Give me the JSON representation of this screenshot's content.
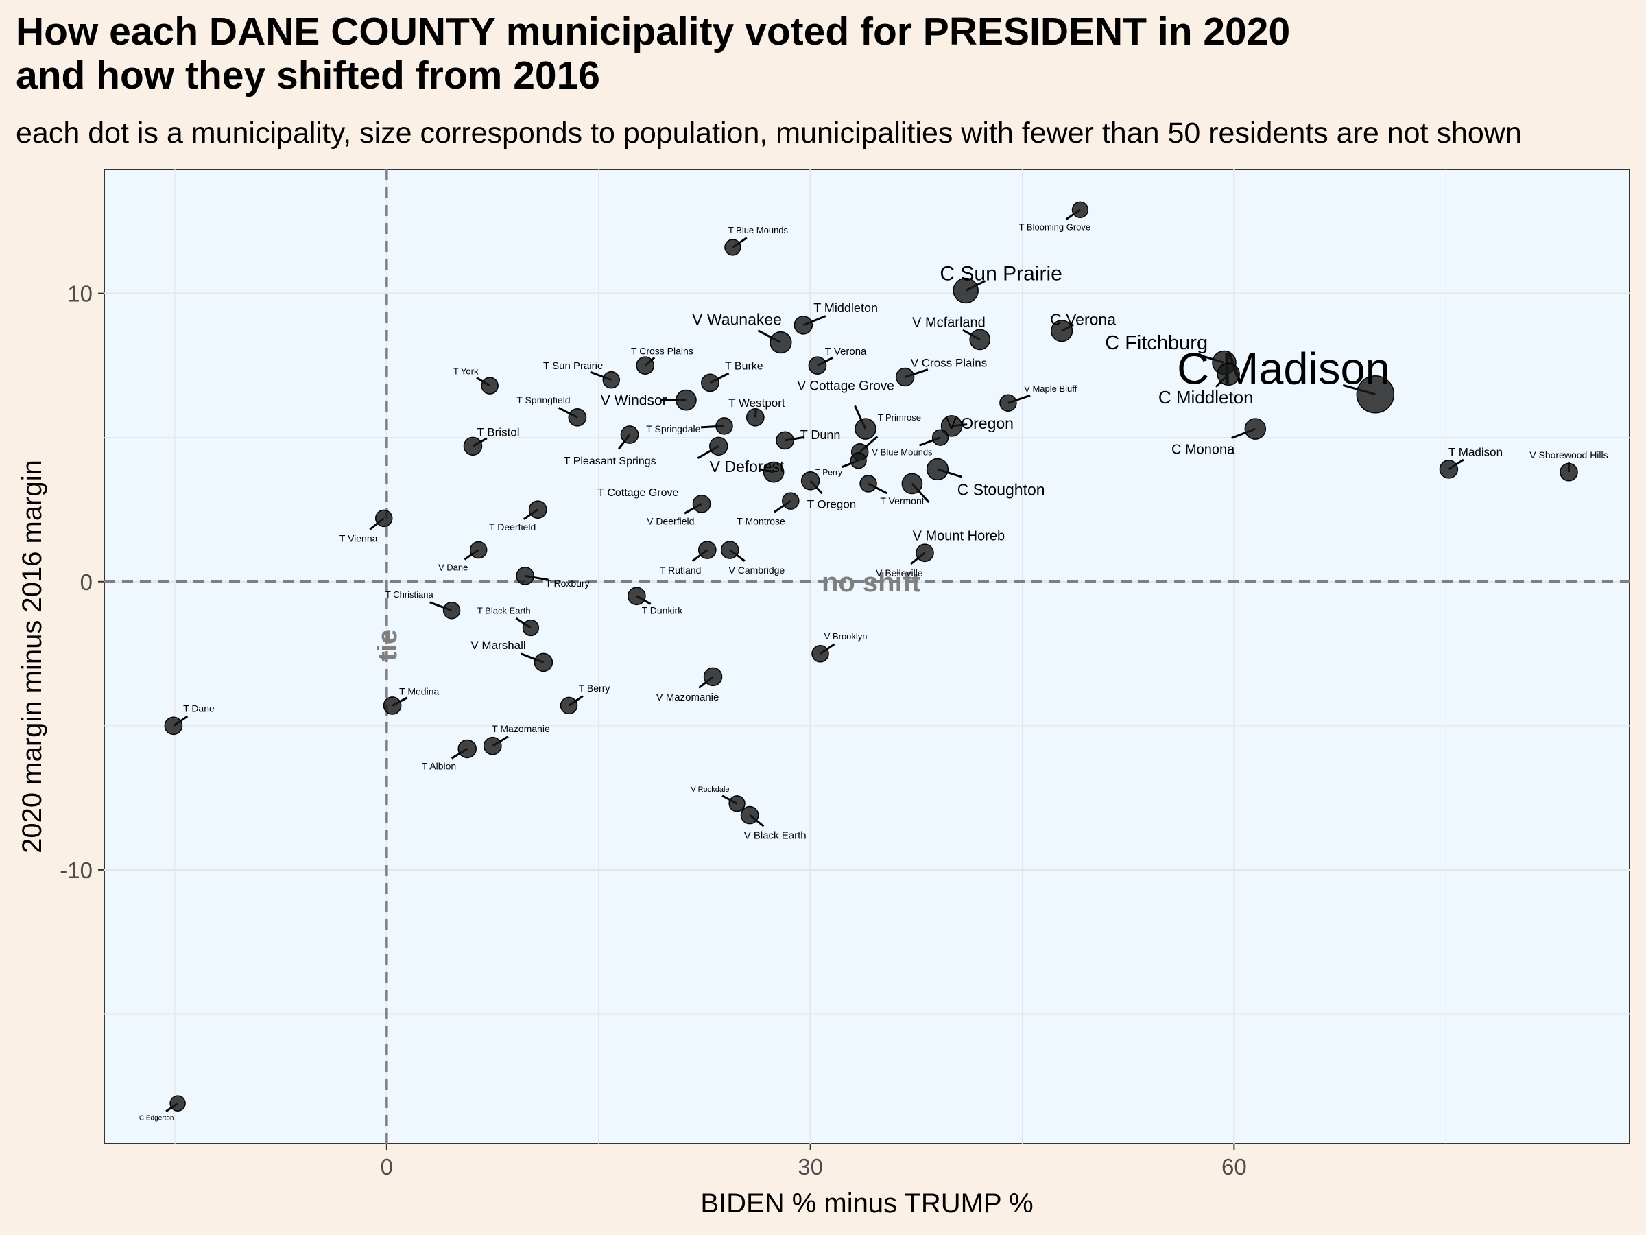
{
  "title_line1": "How each DANE COUNTY municipality voted for PRESIDENT in 2020",
  "title_line2": "and how they shifted from 2016",
  "subtitle": "each dot is a municipality, size corresponds to population, municipalities with fewer than 50 residents are not shown",
  "colors": {
    "background": "#faf0e6",
    "panel": "#f0f8ff",
    "point": "#1a1a1a",
    "ref_line": "#7f7f7f",
    "grid": "#e6e6e6"
  },
  "chart_data": {
    "type": "scatter",
    "xlabel": "BIDEN % minus TRUMP %",
    "ylabel": "2020 margin minus 2016 margin",
    "xlim": [
      -20,
      88
    ],
    "ylim": [
      -19.5,
      14.3
    ],
    "x_ticks": [
      0,
      30,
      60
    ],
    "x_tick_labels": [
      "0",
      "30",
      "60"
    ],
    "y_ticks": [
      -10,
      0,
      10
    ],
    "y_tick_labels": [
      "-10",
      "0",
      "10"
    ],
    "grid": true,
    "reference_lines": [
      {
        "axis": "x",
        "value": 0,
        "label": "tie"
      },
      {
        "axis": "y",
        "value": 0,
        "label": "no shift"
      }
    ],
    "points": [
      {
        "name": "C Madison",
        "x": 70,
        "y": 6.5,
        "size": 1.0,
        "lx": 63.5,
        "ly": 7.4,
        "fs": 65
      },
      {
        "name": "C Sun Prairie",
        "x": 41,
        "y": 10.1,
        "size": 0.55,
        "lx": 43.5,
        "ly": 10.7,
        "fs": 30
      },
      {
        "name": "C Fitchburg",
        "x": 59.3,
        "y": 7.6,
        "size": 0.5,
        "lx": 54.5,
        "ly": 8.3,
        "fs": 29
      },
      {
        "name": "C Middleton",
        "x": 59.6,
        "y": 7.2,
        "size": 0.45,
        "lx": 58,
        "ly": 6.4,
        "fs": 26
      },
      {
        "name": "C Verona",
        "x": 47.8,
        "y": 8.7,
        "size": 0.42,
        "lx": 49.3,
        "ly": 9.1,
        "fs": 23
      },
      {
        "name": "C Monona",
        "x": 61.5,
        "y": 5.3,
        "size": 0.4,
        "lx": 57.8,
        "ly": 4.6,
        "fs": 20
      },
      {
        "name": "C Stoughton",
        "x": 39,
        "y": 3.9,
        "size": 0.42,
        "lx": 43.5,
        "ly": 3.2,
        "fs": 23
      },
      {
        "name": "V Waunakee",
        "x": 27.9,
        "y": 8.3,
        "size": 0.42,
        "lx": 24.8,
        "ly": 9.1,
        "fs": 23
      },
      {
        "name": "V Mcfarland",
        "x": 42,
        "y": 8.4,
        "size": 0.38,
        "lx": 39.8,
        "ly": 9.0,
        "fs": 20
      },
      {
        "name": "V Cottage Grove",
        "x": 33.9,
        "y": 5.3,
        "size": 0.4,
        "lx": 32.5,
        "ly": 6.8,
        "fs": 19
      },
      {
        "name": "V Oregon",
        "x": 40,
        "y": 5.4,
        "size": 0.4,
        "lx": 42,
        "ly": 5.5,
        "fs": 23
      },
      {
        "name": "V Windsor",
        "x": 21.2,
        "y": 6.3,
        "size": 0.38,
        "lx": 17.5,
        "ly": 6.3,
        "fs": 21
      },
      {
        "name": "V Deforest",
        "x": 27.4,
        "y": 3.8,
        "size": 0.38,
        "lx": 25.5,
        "ly": 4.0,
        "fs": 23
      },
      {
        "name": "V Mount Horeb",
        "x": 37.2,
        "y": 3.4,
        "size": 0.38,
        "lx": 40.5,
        "ly": 1.6,
        "fs": 20
      },
      {
        "name": "V Cross Plains",
        "x": 36.7,
        "y": 7.1,
        "size": 0.3,
        "lx": 39.8,
        "ly": 7.6,
        "fs": 17
      },
      {
        "name": "V Maple Bluff",
        "x": 44,
        "y": 6.2,
        "size": 0.25,
        "lx": 47,
        "ly": 6.7,
        "fs": 13
      },
      {
        "name": "V Blue Mounds",
        "x": 39.2,
        "y": 5.0,
        "size": 0.22,
        "lx": 36.5,
        "ly": 4.5,
        "fs": 13
      },
      {
        "name": "V Shorewood Hills",
        "x": 83.7,
        "y": 3.8,
        "size": 0.28,
        "lx": 83.7,
        "ly": 4.4,
        "fs": 14
      },
      {
        "name": "V Belleville",
        "x": 38.1,
        "y": 1.0,
        "size": 0.28,
        "lx": 36.3,
        "ly": 0.3,
        "fs": 14
      },
      {
        "name": "V Brooklyn",
        "x": 30.7,
        "y": -2.5,
        "size": 0.25,
        "lx": 32.5,
        "ly": -1.9,
        "fs": 13
      },
      {
        "name": "V Cambridge",
        "x": 24.3,
        "y": 1.1,
        "size": 0.28,
        "lx": 26.2,
        "ly": 0.4,
        "fs": 14
      },
      {
        "name": "V Deerfield",
        "x": 22.3,
        "y": 2.7,
        "size": 0.28,
        "lx": 20.1,
        "ly": 2.1,
        "fs": 14
      },
      {
        "name": "V Dane",
        "x": 6.5,
        "y": 1.1,
        "size": 0.25,
        "lx": 4.7,
        "ly": 0.5,
        "fs": 13
      },
      {
        "name": "V Marshall",
        "x": 11.1,
        "y": -2.8,
        "size": 0.3,
        "lx": 7.9,
        "ly": -2.2,
        "fs": 17
      },
      {
        "name": "V Mazomanie",
        "x": 23.1,
        "y": -3.3,
        "size": 0.3,
        "lx": 21.3,
        "ly": -4.0,
        "fs": 15
      },
      {
        "name": "V Rockdale",
        "x": 24.8,
        "y": -7.7,
        "size": 0.22,
        "lx": 22.9,
        "ly": -7.2,
        "fs": 11
      },
      {
        "name": "V Black Earth",
        "x": 25.7,
        "y": -8.1,
        "size": 0.28,
        "lx": 27.5,
        "ly": -8.8,
        "fs": 15
      },
      {
        "name": "T Blooming Grove",
        "x": 49.1,
        "y": 12.9,
        "size": 0.22,
        "lx": 47.3,
        "ly": 12.3,
        "fs": 13
      },
      {
        "name": "T Blue Mounds",
        "x": 24.5,
        "y": 11.6,
        "size": 0.22,
        "lx": 26.3,
        "ly": 12.2,
        "fs": 13
      },
      {
        "name": "T Middleton",
        "x": 29.5,
        "y": 8.9,
        "size": 0.3,
        "lx": 32.5,
        "ly": 9.5,
        "fs": 18
      },
      {
        "name": "T Verona",
        "x": 30.5,
        "y": 7.5,
        "size": 0.28,
        "lx": 32.5,
        "ly": 8.0,
        "fs": 15
      },
      {
        "name": "T Cross Plains",
        "x": 18.3,
        "y": 7.5,
        "size": 0.28,
        "lx": 19.5,
        "ly": 8.0,
        "fs": 14
      },
      {
        "name": "T Sun Prairie",
        "x": 15.9,
        "y": 7.0,
        "size": 0.25,
        "lx": 13.2,
        "ly": 7.5,
        "fs": 15
      },
      {
        "name": "T Burke",
        "x": 22.9,
        "y": 6.9,
        "size": 0.28,
        "lx": 25.3,
        "ly": 7.5,
        "fs": 16
      },
      {
        "name": "T York",
        "x": 7.3,
        "y": 6.8,
        "size": 0.25,
        "lx": 5.6,
        "ly": 7.3,
        "fs": 13
      },
      {
        "name": "T Springfield",
        "x": 13.5,
        "y": 5.7,
        "size": 0.28,
        "lx": 11.1,
        "ly": 6.3,
        "fs": 14
      },
      {
        "name": "T Westport",
        "x": 26.1,
        "y": 5.7,
        "size": 0.28,
        "lx": 26.2,
        "ly": 6.2,
        "fs": 17
      },
      {
        "name": "T Springdale",
        "x": 23.9,
        "y": 5.4,
        "size": 0.25,
        "lx": 20.3,
        "ly": 5.3,
        "fs": 14
      },
      {
        "name": "T Primrose",
        "x": 33.5,
        "y": 4.5,
        "size": 0.25,
        "lx": 36.3,
        "ly": 5.7,
        "fs": 13
      },
      {
        "name": "T Dunn",
        "x": 28.2,
        "y": 4.9,
        "size": 0.28,
        "lx": 30.7,
        "ly": 5.1,
        "fs": 18
      },
      {
        "name": "T Pleasant Springs",
        "x": 17.2,
        "y": 5.1,
        "size": 0.28,
        "lx": 15.8,
        "ly": 4.2,
        "fs": 16
      },
      {
        "name": "T Bristol",
        "x": 6.1,
        "y": 4.7,
        "size": 0.3,
        "lx": 7.9,
        "ly": 5.2,
        "fs": 17
      },
      {
        "name": "T Cottage Grove",
        "x": 23.5,
        "y": 4.7,
        "size": 0.3,
        "lx": 17.8,
        "ly": 3.1,
        "fs": 16
      },
      {
        "name": "T Perry",
        "x": 33.4,
        "y": 4.2,
        "size": 0.22,
        "lx": 31.3,
        "ly": 3.8,
        "fs": 12
      },
      {
        "name": "T Oregon",
        "x": 30,
        "y": 3.5,
        "size": 0.3,
        "lx": 31.5,
        "ly": 2.7,
        "fs": 17
      },
      {
        "name": "T Vermont",
        "x": 34.1,
        "y": 3.4,
        "size": 0.25,
        "lx": 36.5,
        "ly": 2.8,
        "fs": 14
      },
      {
        "name": "T Montrose",
        "x": 28.6,
        "y": 2.8,
        "size": 0.25,
        "lx": 26.5,
        "ly": 2.1,
        "fs": 14
      },
      {
        "name": "T Deerfield",
        "x": 10.7,
        "y": 2.5,
        "size": 0.28,
        "lx": 8.9,
        "ly": 1.9,
        "fs": 14
      },
      {
        "name": "T Vienna",
        "x": -0.2,
        "y": 2.2,
        "size": 0.25,
        "lx": -2.0,
        "ly": 1.5,
        "fs": 14
      },
      {
        "name": "T Rutland",
        "x": 22.7,
        "y": 1.1,
        "size": 0.28,
        "lx": 20.8,
        "ly": 0.4,
        "fs": 14
      },
      {
        "name": "T Roxbury",
        "x": 9.8,
        "y": 0.2,
        "size": 0.28,
        "lx": 12.8,
        "ly": -0.05,
        "fs": 14
      },
      {
        "name": "T Christiana",
        "x": 4.6,
        "y": -1.0,
        "size": 0.25,
        "lx": 1.6,
        "ly": -0.45,
        "fs": 13
      },
      {
        "name": "T Black Earth",
        "x": 10.2,
        "y": -1.6,
        "size": 0.22,
        "lx": 8.3,
        "ly": -1.0,
        "fs": 13
      },
      {
        "name": "T Dunkirk",
        "x": 17.7,
        "y": -0.5,
        "size": 0.28,
        "lx": 19.5,
        "ly": -1.0,
        "fs": 14
      },
      {
        "name": "T Berry",
        "x": 12.9,
        "y": -4.3,
        "size": 0.25,
        "lx": 14.7,
        "ly": -3.7,
        "fs": 14
      },
      {
        "name": "T Medina",
        "x": 0.4,
        "y": -4.3,
        "size": 0.28,
        "lx": 2.3,
        "ly": -3.8,
        "fs": 14
      },
      {
        "name": "T Dane",
        "x": -15.1,
        "y": -5.0,
        "size": 0.28,
        "lx": -13.3,
        "ly": -4.4,
        "fs": 14
      },
      {
        "name": "T Mazomanie",
        "x": 7.5,
        "y": -5.7,
        "size": 0.28,
        "lx": 9.5,
        "ly": -5.1,
        "fs": 14
      },
      {
        "name": "T Albion",
        "x": 5.7,
        "y": -5.8,
        "size": 0.3,
        "lx": 3.7,
        "ly": -6.4,
        "fs": 14
      },
      {
        "name": "T Madison",
        "x": 75.2,
        "y": 3.9,
        "size": 0.3,
        "lx": 77.1,
        "ly": 4.5,
        "fs": 17
      },
      {
        "name": "C Edgerton",
        "x": -14.8,
        "y": -18.1,
        "size": 0.2,
        "lx": -16.3,
        "ly": -18.6,
        "fs": 10
      }
    ]
  }
}
